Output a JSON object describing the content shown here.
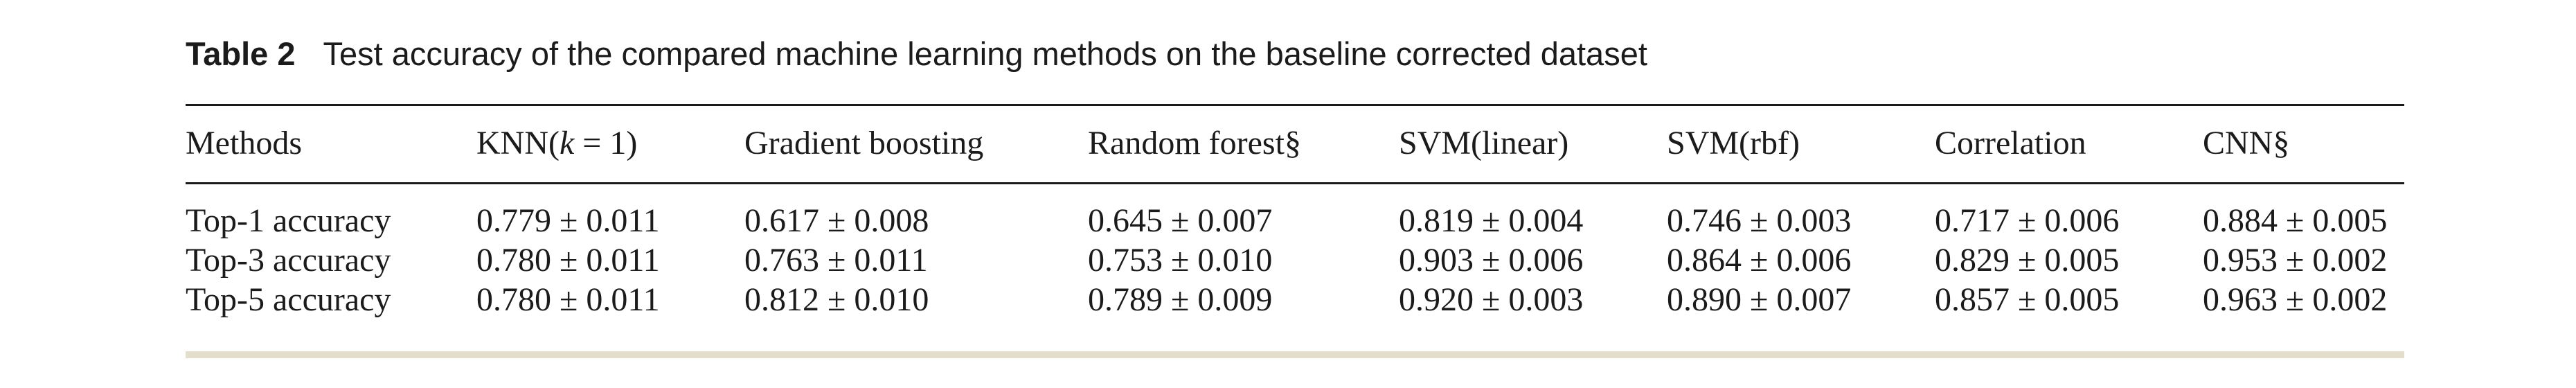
{
  "caption": {
    "tag": "Table 2",
    "text": "Test accuracy of the compared machine learning methods on the baseline corrected dataset"
  },
  "table": {
    "headers": {
      "methods": "Methods",
      "knn_prefix": "KNN(",
      "knn_var": "k",
      "knn_suffix": " = 1)",
      "gradient_boosting": "Gradient boosting",
      "random_forest": "Random forest§",
      "svm_linear": "SVM(linear)",
      "svm_rbf": "SVM(rbf)",
      "correlation": "Correlation",
      "cnn": "CNN§"
    },
    "rows": [
      {
        "label": "Top-1 accuracy",
        "cells": [
          "0.779 ± 0.011",
          "0.617 ± 0.008",
          "0.645 ± 0.007",
          "0.819 ± 0.004",
          "0.746 ± 0.003",
          "0.717 ± 0.006",
          "0.884 ± 0.005"
        ]
      },
      {
        "label": "Top-3 accuracy",
        "cells": [
          "0.780 ± 0.011",
          "0.763 ± 0.011",
          "0.753 ± 0.010",
          "0.903 ± 0.006",
          "0.864 ± 0.006",
          "0.829 ± 0.005",
          "0.953 ± 0.002"
        ]
      },
      {
        "label": "Top-5 accuracy",
        "cells": [
          "0.780 ± 0.011",
          "0.812 ± 0.010",
          "0.789 ± 0.009",
          "0.920 ± 0.003",
          "0.890 ± 0.007",
          "0.857 ± 0.005",
          "0.963 ± 0.002"
        ]
      }
    ]
  }
}
